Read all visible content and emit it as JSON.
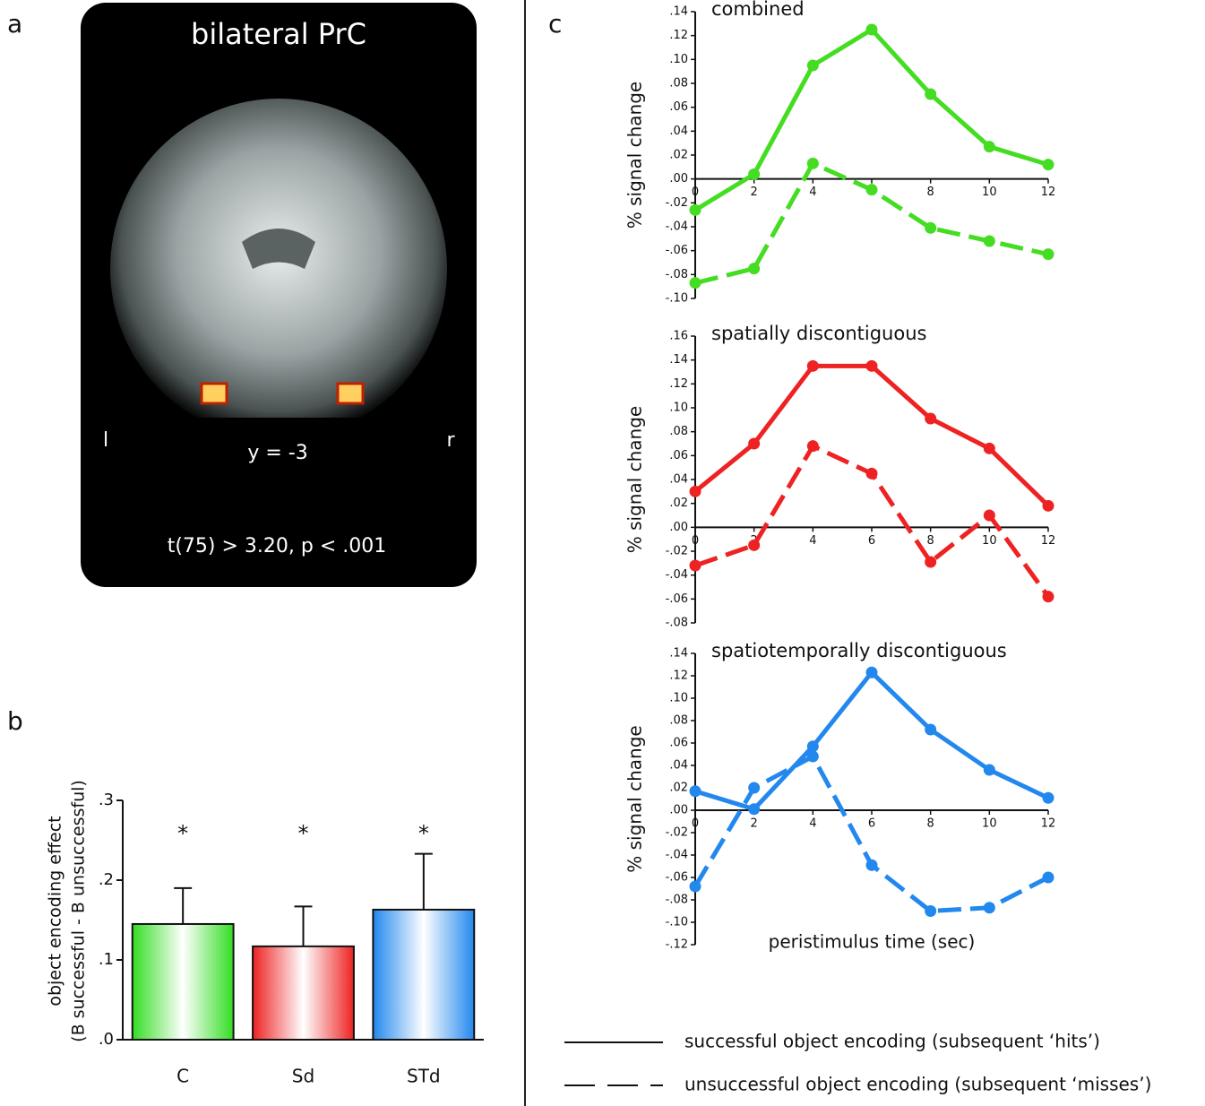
{
  "panel_labels": [
    "a",
    "b",
    "c"
  ],
  "brain_panel": {
    "title": "bilateral PrC",
    "left": "l",
    "right": "r",
    "slice": "y = -3",
    "threshold": "t(75) > 3.20, p < .001"
  },
  "chart_data": [
    {
      "type": "bar",
      "ylabel": [
        "object encoding effect",
        "(B successful - B unsuccessful)"
      ],
      "categories": [
        "C",
        "Sd",
        "STd"
      ],
      "values": [
        0.145,
        0.117,
        0.163
      ],
      "errors": [
        0.045,
        0.05,
        0.07
      ],
      "annotations": [
        "*",
        "*",
        "*"
      ],
      "colors": [
        "#33dd22",
        "#ee2222",
        "#2288ee"
      ],
      "ylim": [
        0,
        0.3
      ],
      "yticks": [
        {
          "value": 0,
          "label": ".0"
        },
        {
          "value": 0.1,
          "label": ".1"
        },
        {
          "value": 0.2,
          "label": ".2"
        },
        {
          "value": 0.3,
          "label": ".3"
        }
      ]
    },
    {
      "type": "line",
      "title": "combined",
      "ylabel": "% signal change",
      "x": [
        0,
        2,
        4,
        6,
        8,
        10,
        12
      ],
      "xlim": [
        0,
        12
      ],
      "xticks": [
        0,
        2,
        4,
        6,
        8,
        10,
        12
      ],
      "ylim": [
        -0.1,
        0.14
      ],
      "yticks": [
        {
          "value": -0.1,
          "label": "-.10"
        },
        {
          "value": -0.08,
          "label": "-.08"
        },
        {
          "value": -0.06,
          "label": "-.06"
        },
        {
          "value": -0.04,
          "label": "-.04"
        },
        {
          "value": -0.02,
          "label": "-.02"
        },
        {
          "value": 0,
          "label": ".00"
        },
        {
          "value": 0.02,
          "label": ".02"
        },
        {
          "value": 0.04,
          "label": ".04"
        },
        {
          "value": 0.06,
          "label": ".06"
        },
        {
          "value": 0.08,
          "label": ".08"
        },
        {
          "value": 0.1,
          "label": ".10"
        },
        {
          "value": 0.12,
          "label": ".12"
        },
        {
          "value": 0.14,
          "label": ".14"
        }
      ],
      "series": [
        {
          "name": "successful object encoding (subsequent ‘hits’)",
          "color": "#44dd22",
          "dash": false,
          "values": [
            -0.026,
            0.004,
            0.095,
            0.125,
            0.071,
            0.027,
            0.012
          ]
        },
        {
          "name": "unsuccessful object encoding (subsequent ‘misses’)",
          "color": "#44dd22",
          "dash": true,
          "values": [
            -0.087,
            -0.075,
            0.013,
            -0.009,
            -0.041,
            -0.052,
            -0.063
          ]
        }
      ]
    },
    {
      "type": "line",
      "title": "spatially discontiguous",
      "ylabel": "% signal change",
      "x": [
        0,
        2,
        4,
        6,
        8,
        10,
        12
      ],
      "xlim": [
        0,
        12
      ],
      "xticks": [
        0,
        2,
        4,
        6,
        8,
        10,
        12
      ],
      "ylim": [
        -0.08,
        0.16
      ],
      "yticks": [
        {
          "value": -0.08,
          "label": "-.08"
        },
        {
          "value": -0.06,
          "label": "-.06"
        },
        {
          "value": -0.04,
          "label": "-.04"
        },
        {
          "value": -0.02,
          "label": "-.02"
        },
        {
          "value": 0,
          "label": ".00"
        },
        {
          "value": 0.02,
          "label": ".02"
        },
        {
          "value": 0.04,
          "label": ".04"
        },
        {
          "value": 0.06,
          "label": ".06"
        },
        {
          "value": 0.08,
          "label": ".08"
        },
        {
          "value": 0.1,
          "label": ".10"
        },
        {
          "value": 0.12,
          "label": ".12"
        },
        {
          "value": 0.14,
          "label": ".14"
        },
        {
          "value": 0.16,
          "label": ".16"
        }
      ],
      "series": [
        {
          "color": "#ee2222",
          "dash": false,
          "values": [
            0.03,
            0.07,
            0.135,
            0.135,
            0.091,
            0.066,
            0.018
          ]
        },
        {
          "color": "#ee2222",
          "dash": true,
          "values": [
            -0.032,
            -0.015,
            0.068,
            0.045,
            -0.029,
            0.01,
            -0.058
          ]
        }
      ]
    },
    {
      "type": "line",
      "title": "spatiotemporally discontiguous",
      "ylabel": "% signal change",
      "xlabel": "peristimulus time (sec)",
      "x": [
        0,
        2,
        4,
        6,
        8,
        10,
        12
      ],
      "xlim": [
        0,
        12
      ],
      "xticks": [
        0,
        2,
        4,
        6,
        8,
        10,
        12
      ],
      "ylim": [
        -0.12,
        0.14
      ],
      "yticks": [
        {
          "value": -0.12,
          "label": "-.12"
        },
        {
          "value": -0.1,
          "label": "-.10"
        },
        {
          "value": -0.08,
          "label": "-.08"
        },
        {
          "value": -0.06,
          "label": "-.06"
        },
        {
          "value": -0.04,
          "label": "-.04"
        },
        {
          "value": -0.02,
          "label": "-.02"
        },
        {
          "value": 0,
          "label": ".00"
        },
        {
          "value": 0.02,
          "label": ".02"
        },
        {
          "value": 0.04,
          "label": ".04"
        },
        {
          "value": 0.06,
          "label": ".06"
        },
        {
          "value": 0.08,
          "label": ".08"
        },
        {
          "value": 0.1,
          "label": ".10"
        },
        {
          "value": 0.12,
          "label": ".12"
        },
        {
          "value": 0.14,
          "label": ".14"
        }
      ],
      "series": [
        {
          "color": "#2288ee",
          "dash": false,
          "values": [
            0.017,
            0.001,
            0.057,
            0.123,
            0.072,
            0.036,
            0.011
          ]
        },
        {
          "color": "#2288ee",
          "dash": true,
          "values": [
            -0.068,
            0.02,
            0.048,
            -0.049,
            -0.09,
            -0.087,
            -0.06
          ]
        }
      ]
    }
  ]
}
